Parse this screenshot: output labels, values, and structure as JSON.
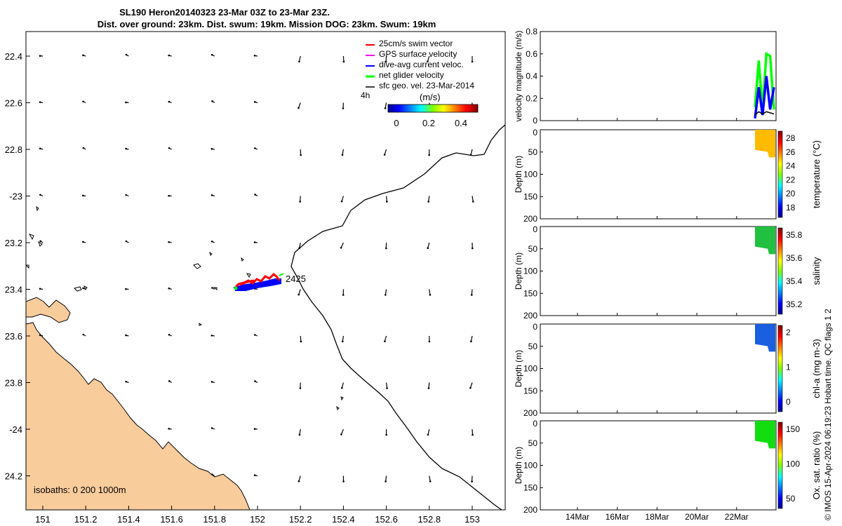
{
  "title_line1": "SL190 Heron20140323 23-Mar 03Z to 23-Mar 23Z.",
  "title_line2": "Dist. over ground: 23km. Dist. swum: 19km. Mission DOG: 23km. Swum: 19km",
  "map": {
    "lat_ticks": [
      "22.4",
      "22.6",
      "22.8",
      "-23",
      "23.2",
      "23.4",
      "23.6",
      "23.8",
      "-24",
      "24.2"
    ],
    "lon_ticks": [
      "151",
      "151.2",
      "151.4",
      "151.6",
      "151.8",
      "152",
      "152.2",
      "152.4",
      "152.6",
      "152.8",
      "153"
    ],
    "legend": [
      {
        "label": "25cm/s swim vector",
        "color": "#ff0000"
      },
      {
        "label": "GPS surface velocity",
        "color": "#ff00ff"
      },
      {
        "label": "dive-avg current veloc.",
        "color": "#0000ff"
      },
      {
        "label": "net glider velocity",
        "color": "#00ff00"
      },
      {
        "label": "sfc geo. vel. 23-Mar-2014",
        "color": "#000000"
      }
    ],
    "arrow_scale_label": "4h",
    "speed_colorbar": {
      "label": "(m/s)",
      "ticks": [
        "0",
        "0.2",
        "0.4"
      ]
    },
    "glider_label": "2425",
    "isobaths_label": "isobaths: 0   200  1000m",
    "colors": {
      "land": "#f9cc9c",
      "swim": "#ff0000",
      "current": "#0000ff"
    }
  },
  "chart_data": [
    {
      "type": "line",
      "ylabel": "velocity magnitude (m/s)",
      "ylim": [
        0,
        0.8
      ],
      "yticks": [
        "0",
        "0.2",
        "0.4",
        "0.6",
        "0.8"
      ],
      "series": [
        {
          "name": "net glider velocity",
          "color": "#00ff00",
          "values": [
            0.12,
            0.54,
            0.08,
            0.6,
            0.58,
            0.1
          ]
        },
        {
          "name": "dive-avg current veloc.",
          "color": "#0000ff",
          "values": [
            0.02,
            0.3,
            0.05,
            0.4,
            0.1,
            0.3
          ]
        },
        {
          "name": "sfc geo. vel.",
          "color": "#000000",
          "values": [
            0.05,
            0.08,
            0.06,
            0.08,
            0.07,
            0.06
          ]
        }
      ]
    },
    {
      "type": "heatmap",
      "ylabel": "Depth (m)",
      "yticks": [
        "0",
        "50",
        "100",
        "150",
        "200"
      ],
      "colorbar_label": "temperature (°C)",
      "colorbar_ticks": [
        "18",
        "20",
        "22",
        "24",
        "26",
        "28"
      ],
      "value_color": "#ffbb00"
    },
    {
      "type": "heatmap",
      "ylabel": "Depth (m)",
      "yticks": [
        "0",
        "50",
        "100",
        "150",
        "200"
      ],
      "colorbar_label": "salinity",
      "colorbar_ticks": [
        "35.2",
        "35.4",
        "35.6",
        "35.8"
      ],
      "value_color": "#22c040"
    },
    {
      "type": "heatmap",
      "ylabel": "Depth (m)",
      "yticks": [
        "0",
        "50",
        "100",
        "150",
        "200"
      ],
      "colorbar_label": "chl-a (mg m-3)",
      "colorbar_ticks": [
        "0",
        "1",
        "2"
      ],
      "value_color": "#1a5fe0"
    },
    {
      "type": "heatmap",
      "ylabel": "Depth (m)",
      "yticks": [
        "0",
        "50",
        "100",
        "150",
        "200"
      ],
      "colorbar_label": "Ox. sat. ratio (%)",
      "colorbar_ticks": [
        "50",
        "100",
        "150"
      ],
      "value_color": "#11dd11",
      "x_ticks": [
        "14Mar",
        "16Mar",
        "18Mar",
        "20Mar",
        "22Mar"
      ]
    }
  ],
  "footer": "© IMOS 15-Apr-2024 06:19:23 Hobart time. QC flags 1  2"
}
